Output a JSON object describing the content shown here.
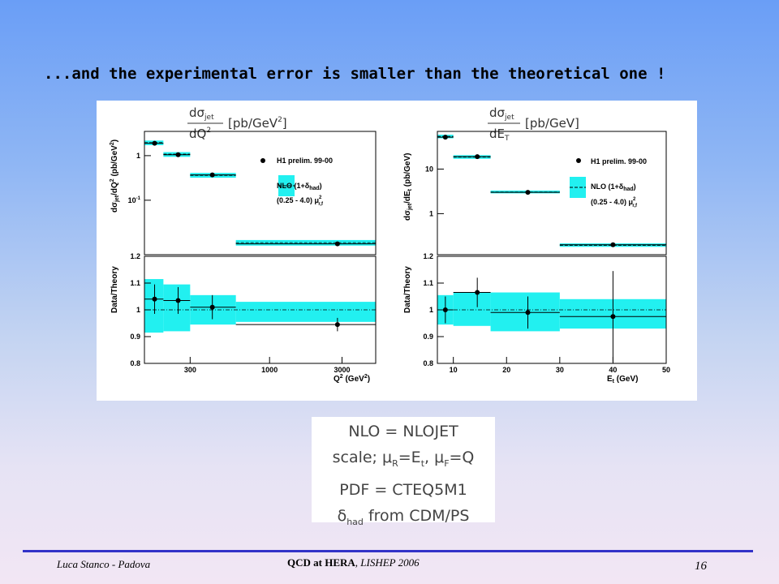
{
  "slide": {
    "title": "...and the experimental error is smaller than the theoretical one !",
    "notes": {
      "line1": "NLO = NLOJET",
      "line2_prefix": "scale; μ",
      "line2_sub1": "R",
      "line2_mid1": "=E",
      "line2_sub2": "t",
      "line2_mid2": ", μ",
      "line2_sub3": "F",
      "line2_end": "=Q",
      "line3": "PDF = CTEQ5M1",
      "line4_prefix": "δ",
      "line4_sub": "had",
      "line4_end": " from CDM/PS"
    },
    "footer": {
      "author": "Luca Stanco - Padova",
      "talk_bold": "QCD at HERA",
      "talk_rest": ", LISHEP 2006",
      "page": "16"
    }
  },
  "colors": {
    "band": "#22f0f0",
    "marker": "#000000",
    "footer_line": "#3232c8"
  },
  "legend": {
    "data_label": "H1 prelim. 99-00",
    "nlo_label": "NLO (1+δ",
    "nlo_sub": "had",
    "nlo_end": ")",
    "scale_label": "(0.25 - 4.0) μ",
    "scale_sup": "2",
    "scale_sub": "r,f"
  },
  "chart_data": [
    {
      "type": "scatter",
      "panel": "top-left",
      "formula": {
        "num": "dσ",
        "num_sub": "jet",
        "den": "dQ",
        "den_sup": "2",
        "unit": "[pb/GeV",
        "unit_sup": "2",
        "unit_end": "]"
      },
      "ylabel": "dσ_jet/dQ² (pb/GeV²)",
      "yscale": "log",
      "xscale": "log",
      "xlim": [
        150,
        5000
      ],
      "ylim": [
        0.006,
        3.5
      ],
      "yticks": [
        {
          "v": 1,
          "l": "1"
        },
        {
          "v": 0.1,
          "l": "10-1"
        }
      ],
      "bins": [
        [
          150,
          200
        ],
        [
          200,
          300
        ],
        [
          300,
          600
        ],
        [
          600,
          5000
        ]
      ],
      "x": [
        175,
        250,
        420,
        2800
      ],
      "y": [
        1.9,
        1.05,
        0.37,
        0.0105
      ],
      "theory": [
        1.95,
        1.08,
        0.36,
        0.0112
      ],
      "band_lo": [
        1.72,
        0.94,
        0.32,
        0.0096
      ],
      "band_hi": [
        2.18,
        1.2,
        0.41,
        0.0128
      ]
    },
    {
      "type": "scatter",
      "panel": "bottom-left",
      "ylabel": "Data/Theory",
      "xlabel": "Q2 (GeV2)",
      "xscale": "log",
      "xlim": [
        150,
        5000
      ],
      "ylim": [
        0.8,
        1.2
      ],
      "yticks": [
        {
          "v": 0.8,
          "l": "0.8"
        },
        {
          "v": 0.9,
          "l": "0.9"
        },
        {
          "v": 1.0,
          "l": "1"
        },
        {
          "v": 1.1,
          "l": "1.1"
        },
        {
          "v": 1.2,
          "l": "1.2"
        }
      ],
      "xticks": [
        {
          "v": 300,
          "l": "300"
        },
        {
          "v": 1000,
          "l": "1000"
        },
        {
          "v": 3000,
          "l": "3000"
        }
      ],
      "bins": [
        [
          150,
          200
        ],
        [
          200,
          300
        ],
        [
          300,
          600
        ],
        [
          600,
          5000
        ]
      ],
      "x": [
        175,
        250,
        420,
        2800
      ],
      "y": [
        1.04,
        1.035,
        1.01,
        0.945
      ],
      "err": [
        0.055,
        0.05,
        0.045,
        0.025
      ],
      "band_lo": [
        0.915,
        0.92,
        0.945,
        0.955
      ],
      "band_hi": [
        1.115,
        1.095,
        1.055,
        1.03
      ]
    },
    {
      "type": "scatter",
      "panel": "top-right",
      "formula": {
        "num": "dσ",
        "num_sub": "jet",
        "den": "dE",
        "den_sub": "T",
        "unit": "[pb/GeV]"
      },
      "ylabel": "dσ_jet/dE_t (pb/GeV)",
      "yscale": "log",
      "xlim": [
        7,
        50
      ],
      "ylim": [
        0.12,
        70
      ],
      "yticks": [
        {
          "v": 10,
          "l": "10"
        },
        {
          "v": 1,
          "l": "1"
        }
      ],
      "bins": [
        [
          7,
          10
        ],
        [
          10,
          17
        ],
        [
          17,
          30
        ],
        [
          30,
          50
        ]
      ],
      "x": [
        8.5,
        14.5,
        24,
        40
      ],
      "y": [
        52,
        19,
        3.0,
        0.2
      ],
      "theory": [
        54,
        18.5,
        3.05,
        0.195
      ],
      "band_lo": [
        49,
        17,
        2.85,
        0.18
      ],
      "band_hi": [
        59,
        20.5,
        3.3,
        0.215
      ]
    },
    {
      "type": "scatter",
      "panel": "bottom-right",
      "ylabel": "Data/Theory",
      "xlabel": "Et (GeV)",
      "xlim": [
        7,
        50
      ],
      "ylim": [
        0.8,
        1.2
      ],
      "yticks": [
        {
          "v": 0.8,
          "l": "0.8"
        },
        {
          "v": 0.9,
          "l": "0.9"
        },
        {
          "v": 1.0,
          "l": "1"
        },
        {
          "v": 1.1,
          "l": "1.1"
        },
        {
          "v": 1.2,
          "l": "1.2"
        }
      ],
      "xticks": [
        {
          "v": 10,
          "l": "10"
        },
        {
          "v": 20,
          "l": "20"
        },
        {
          "v": 30,
          "l": "30"
        },
        {
          "v": 40,
          "l": "40"
        },
        {
          "v": 50,
          "l": "50"
        }
      ],
      "bins": [
        [
          7,
          10
        ],
        [
          10,
          17
        ],
        [
          17,
          30
        ],
        [
          30,
          50
        ]
      ],
      "x": [
        8.5,
        14.5,
        24,
        40
      ],
      "y": [
        1.0,
        1.065,
        0.99,
        0.975
      ],
      "err": [
        0.05,
        0.055,
        0.06,
        0.17
      ],
      "band_lo": [
        0.945,
        0.94,
        0.92,
        0.93
      ],
      "band_hi": [
        1.055,
        1.065,
        1.065,
        1.04
      ]
    }
  ]
}
